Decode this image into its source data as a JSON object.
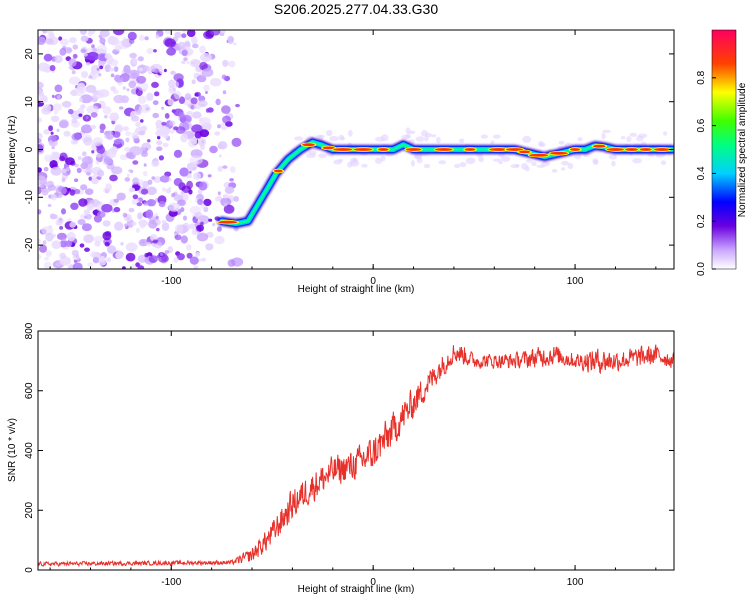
{
  "title": "S206.2025.277.04.33.G30",
  "chart_data": [
    {
      "type": "heatmap",
      "xlabel": "Height of straight line (km)",
      "ylabel": "Frequency (Hz)",
      "xlim": [
        -166,
        149
      ],
      "ylim": [
        -25,
        25
      ],
      "x_ticks": [
        -100,
        0,
        100
      ],
      "y_ticks": [
        -20,
        -10,
        0,
        10,
        20
      ],
      "x_tick_labels": [
        "-100",
        "0",
        "100"
      ],
      "y_tick_labels": [
        "-20",
        "-10",
        "0",
        "10",
        "20"
      ],
      "noise_region_x": [
        -166,
        -67
      ],
      "noise_region_y": [
        -25,
        25
      ],
      "ridge": {
        "x": [
          -75,
          -68,
          -62,
          -55,
          -48,
          -42,
          -36,
          -30,
          -26,
          -20,
          -10,
          0,
          10,
          15,
          20,
          30,
          40,
          50,
          60,
          70,
          75,
          80,
          85,
          90,
          100,
          105,
          110,
          115,
          120,
          130,
          148
        ],
        "y": [
          -15,
          -15.5,
          -15,
          -10,
          -5,
          -2,
          0,
          1.5,
          1,
          0,
          0,
          0,
          0,
          1,
          0,
          0,
          0,
          0,
          0,
          0,
          -0.5,
          -1,
          -1.5,
          -1,
          0,
          0,
          0.8,
          0.5,
          0,
          0,
          0
        ]
      },
      "colorbar": {
        "label": "Normalized spectral amplitude",
        "range": [
          0,
          1
        ],
        "ticks": [
          0.0,
          0.2,
          0.4,
          0.6,
          0.8
        ],
        "tick_labels": [
          "0.0",
          "0.2",
          "0.4",
          "0.6",
          "0.8"
        ]
      }
    },
    {
      "type": "line",
      "xlabel": "Height of straight line (km)",
      "ylabel": "SNR (10 * v/v)",
      "xlim": [
        -166,
        149
      ],
      "ylim": [
        0,
        800
      ],
      "x_ticks": [
        -100,
        0,
        100
      ],
      "y_ticks": [
        0,
        200,
        400,
        600,
        800
      ],
      "x_tick_labels": [
        "-100",
        "0",
        "100"
      ],
      "y_tick_labels": [
        "0",
        "200",
        "400",
        "600",
        "800"
      ],
      "series": [
        {
          "name": "SNR",
          "color": "#e8302a",
          "trend_x": [
            -166,
            -70,
            -60,
            -50,
            -40,
            -30,
            -20,
            -10,
            0,
            10,
            20,
            30,
            40,
            45,
            50,
            60,
            70,
            80,
            90,
            100,
            110,
            120,
            130,
            140,
            149
          ],
          "trend_y": [
            20,
            25,
            50,
            120,
            220,
            280,
            330,
            350,
            390,
            470,
            560,
            650,
            730,
            720,
            700,
            700,
            700,
            710,
            720,
            700,
            700,
            700,
            710,
            720,
            700
          ],
          "noise_amp": [
            8,
            8,
            30,
            50,
            60,
            60,
            60,
            60,
            70,
            70,
            60,
            50,
            40,
            40,
            30,
            30,
            30,
            40,
            40,
            30,
            50,
            40,
            40,
            40,
            30
          ]
        }
      ]
    }
  ]
}
